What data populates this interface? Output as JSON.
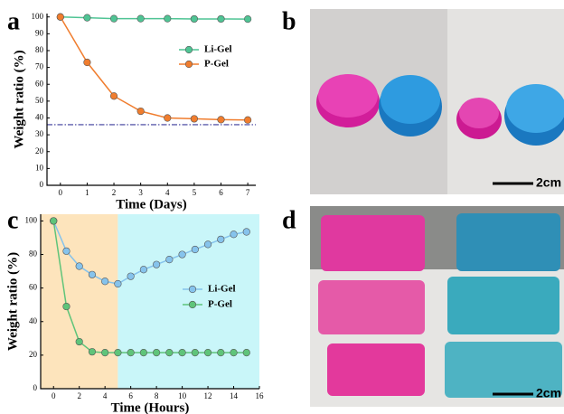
{
  "panels": [
    "a",
    "b",
    "c",
    "d"
  ],
  "photo_scale_labels": [
    "2cm",
    "2cm"
  ],
  "chart_data": [
    {
      "type": "line",
      "xlabel": "Time (Days)",
      "ylabel": "Weight ratio (%)",
      "x": [
        0,
        1,
        2,
        3,
        4,
        5,
        6,
        7
      ],
      "xlim": [
        -0.5,
        7.3
      ],
      "xticks": [
        0,
        1,
        2,
        3,
        4,
        5,
        6,
        7
      ],
      "ylim": [
        0,
        102
      ],
      "yticks": [
        0,
        10,
        20,
        30,
        40,
        50,
        60,
        70,
        80,
        90,
        100
      ],
      "legend": "upper right",
      "hlines": [
        {
          "value": 36,
          "color": "#3b3b9a"
        }
      ],
      "series": [
        {
          "name": "Li-Gel",
          "color": "#4fc494",
          "values": [
            100,
            99.5,
            99,
            99,
            99,
            98.8,
            98.8,
            98.7
          ]
        },
        {
          "name": "P-Gel",
          "color": "#f07d2e",
          "values": [
            100,
            73,
            53,
            44,
            40,
            39.5,
            39,
            38.8
          ]
        }
      ]
    },
    {
      "type": "line",
      "xlabel": "Time (Hours)",
      "ylabel": "Weight ratio (%)",
      "x": [
        0,
        1,
        2,
        3,
        4,
        5,
        6,
        7,
        8,
        9,
        10,
        11,
        12,
        13,
        14,
        15
      ],
      "xlim": [
        -1,
        16
      ],
      "xticks": [
        0,
        2,
        4,
        6,
        8,
        10,
        12,
        14,
        16
      ],
      "ylim": [
        0,
        104
      ],
      "yticks": [
        0,
        20,
        40,
        60,
        80,
        100
      ],
      "legend": "center right",
      "shaded_regions": [
        {
          "x": [
            -1,
            5
          ],
          "color": "#fde4bc"
        },
        {
          "x": [
            5,
            16
          ],
          "color": "#c9f6f9"
        }
      ],
      "series": [
        {
          "name": "Li-Gel",
          "color": "#86c3ec",
          "values": [
            100,
            82,
            73,
            68,
            64,
            62.5,
            67,
            71,
            74,
            77,
            80,
            83,
            86,
            89,
            92,
            93.5
          ]
        },
        {
          "name": "P-Gel",
          "color": "#5fc47a",
          "values": [
            100,
            49,
            28,
            22,
            21.5,
            21.5,
            21.5,
            21.5,
            21.5,
            21.5,
            21.5,
            21.5,
            21.5,
            21.5,
            21.5,
            21.5
          ]
        }
      ]
    }
  ]
}
